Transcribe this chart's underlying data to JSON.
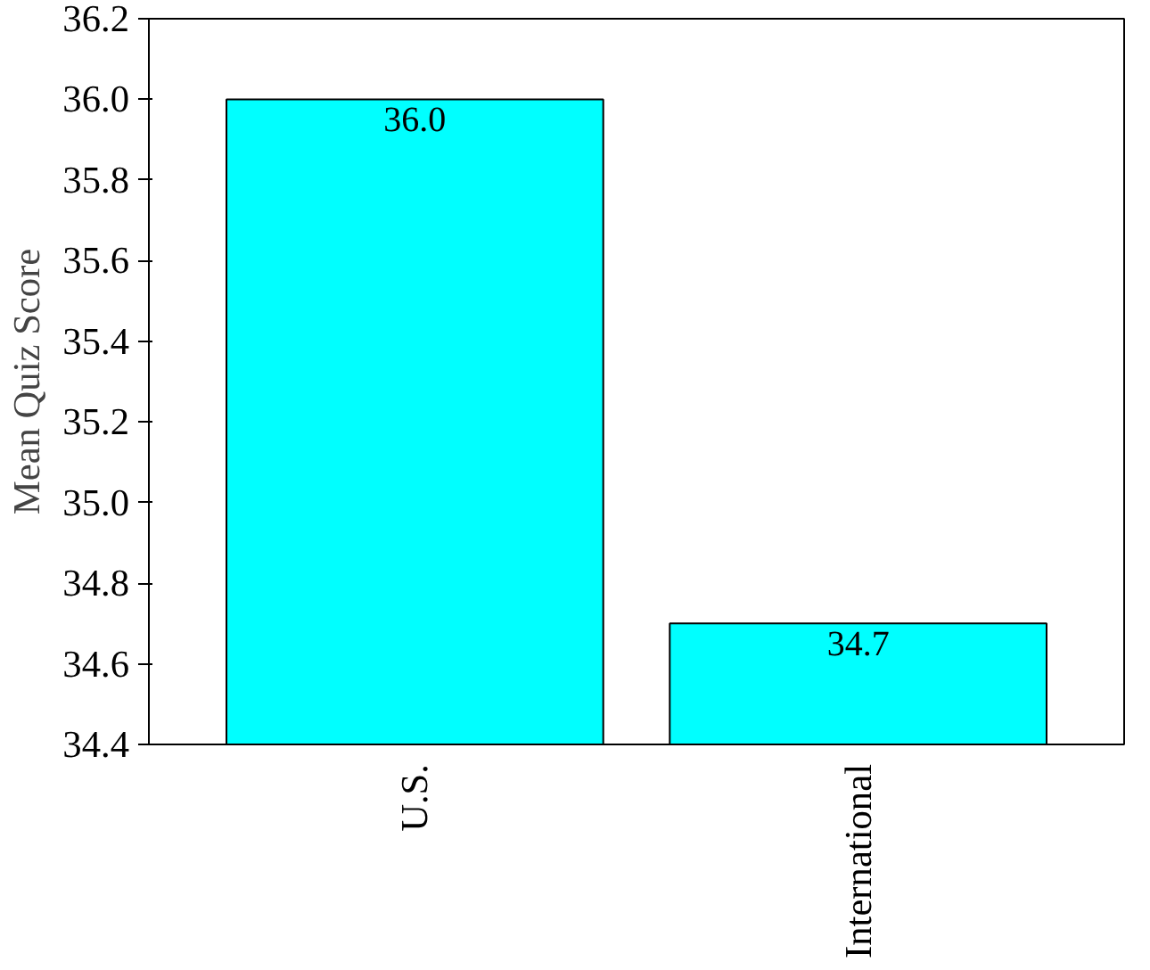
{
  "chart_data": {
    "type": "bar",
    "ylabel": "Mean Quiz Score",
    "categories": [
      "U.S.",
      "International"
    ],
    "values": [
      36.0,
      34.7
    ],
    "color": "#00ffff",
    "ylim": [
      34.4,
      36.2
    ],
    "yticks": [
      {
        "value": 34.4,
        "label": "34.4"
      },
      {
        "value": 34.6,
        "label": "34.6"
      },
      {
        "value": 34.8,
        "label": "34.8"
      },
      {
        "value": 35.0,
        "label": "35.0"
      },
      {
        "value": 35.2,
        "label": "35.2"
      },
      {
        "value": 35.4,
        "label": "35.4"
      },
      {
        "value": 35.6,
        "label": "35.6"
      },
      {
        "value": 35.8,
        "label": "35.8"
      },
      {
        "value": 36.0,
        "label": "36.0"
      },
      {
        "value": 36.2,
        "label": "36.2"
      }
    ],
    "value_labels": [
      "36.0",
      "34.7"
    ],
    "grid": false
  }
}
